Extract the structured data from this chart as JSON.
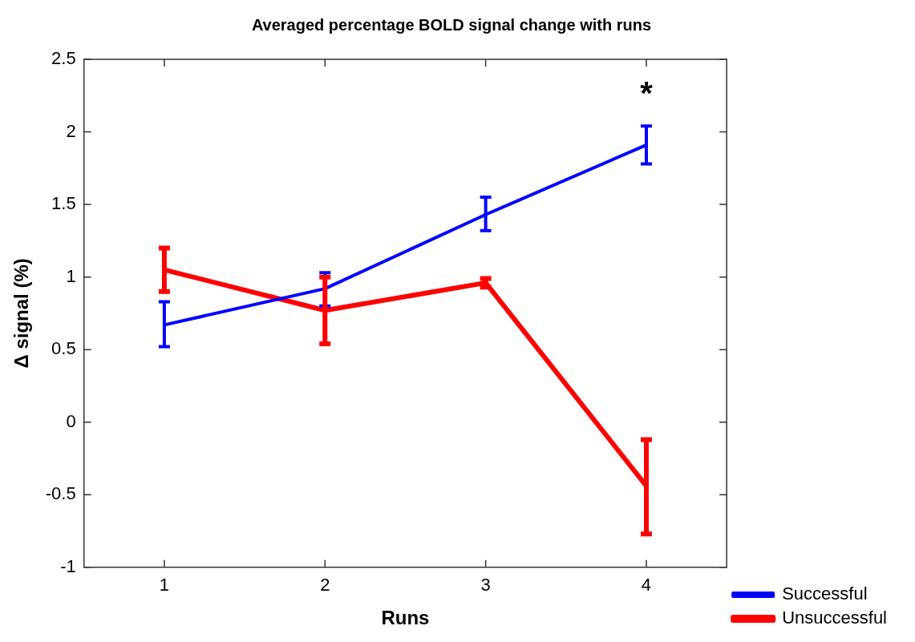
{
  "chart_data": {
    "type": "line",
    "title": "Averaged percentage BOLD signal change with runs",
    "xlabel": "Runs",
    "ylabel": "Δ signal (%)",
    "x": [
      1,
      2,
      3,
      4
    ],
    "xlim": [
      0.5,
      4.5
    ],
    "xticks": [
      1,
      2,
      3,
      4
    ],
    "ylim": [
      -1,
      2.5
    ],
    "yticks": [
      -1,
      -0.5,
      0,
      0.5,
      1,
      1.5,
      2,
      2.5
    ],
    "series": [
      {
        "name": "Successful",
        "color": "#0000ff",
        "values": [
          0.67,
          0.92,
          1.43,
          1.91
        ],
        "errors": [
          [
            0.52,
            0.83
          ],
          [
            0.8,
            1.03
          ],
          [
            1.32,
            1.55
          ],
          [
            1.78,
            2.04
          ]
        ]
      },
      {
        "name": "Unsuccessful",
        "color": "#ff0000",
        "values": [
          1.05,
          0.77,
          0.96,
          -0.44
        ],
        "errors": [
          [
            0.9,
            1.2
          ],
          [
            0.54,
            1.0
          ],
          [
            0.93,
            0.99
          ],
          [
            -0.77,
            -0.12
          ]
        ]
      }
    ],
    "annotations": [
      "*"
    ],
    "grid": false,
    "legend": "bottom right",
    "marker": "none",
    "line_style": "solid"
  }
}
